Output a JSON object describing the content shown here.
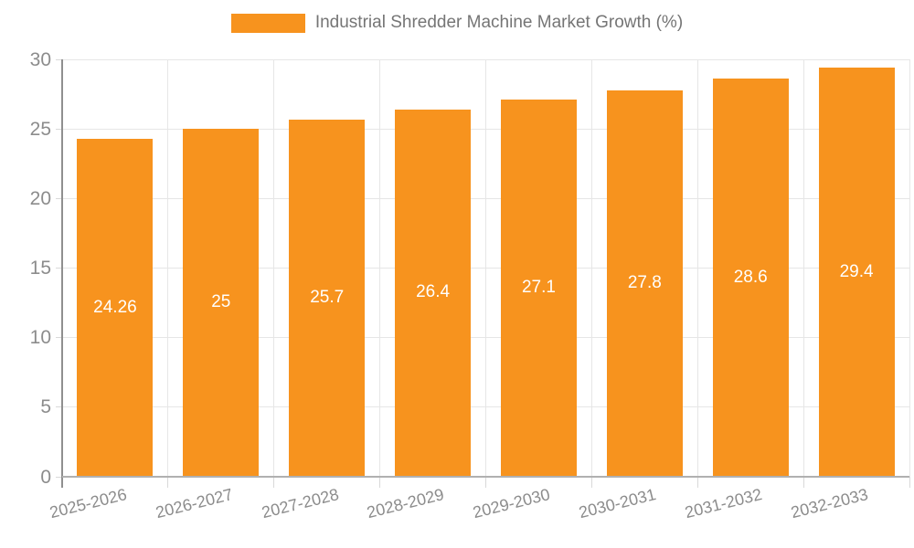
{
  "chart_data": {
    "type": "bar",
    "title": "Industrial Shredder Machine Market Growth (%)",
    "categories": [
      "2025-2026",
      "2026-2027",
      "2027-2028",
      "2028-2029",
      "2029-2030",
      "2030-2031",
      "2031-2032",
      "2032-2033"
    ],
    "values": [
      24.26,
      25,
      25.7,
      26.4,
      27.1,
      27.8,
      28.6,
      29.4
    ],
    "value_labels": [
      "24.26",
      "25",
      "25.7",
      "26.4",
      "27.1",
      "27.8",
      "28.6",
      "29.4"
    ],
    "xlabel": "",
    "ylabel": "",
    "ylim": [
      0,
      30
    ],
    "ytick_step": 5,
    "ytick_labels": [
      "0",
      "5",
      "10",
      "15",
      "20",
      "25",
      "30"
    ],
    "grid": true,
    "legend_position": "top",
    "colors": {
      "bar": "#f7931e",
      "grid_line": "#e6e6e6",
      "y_axis_line": "#8f8f8f",
      "x_axis_line": "#b0b0b0",
      "tick_mark": "#d9d9d9",
      "tick_text": "#8c8c8c",
      "value_label_text": "#ffffff",
      "legend_text": "#757575",
      "background": "#ffffff"
    }
  }
}
